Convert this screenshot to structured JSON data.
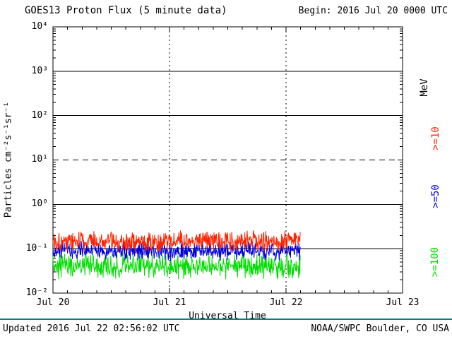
{
  "chart_data": {
    "type": "line",
    "title": "GOES13 Proton Flux (5 minute data)",
    "begin_label": "Begin: 2016 Jul 20 0000 UTC",
    "xlabel": "Universal Time",
    "ylabel": "Particles cm⁻²s⁻¹sr⁻¹",
    "y_scale": "log",
    "ylim": [
      0.01,
      10000
    ],
    "xlim_days": [
      0,
      3
    ],
    "x_tick_labels": [
      "Jul 20",
      "Jul 21",
      "Jul 22",
      "Jul 23"
    ],
    "y_tick_labels": [
      "10⁴",
      "10³",
      "10²",
      "10¹",
      "10⁰",
      "10⁻¹",
      "10⁻²"
    ],
    "grid": {
      "solid_decades": [
        3,
        2,
        0,
        -1
      ],
      "dashed_decade": 1,
      "vertical_dashed_days": [
        1,
        2
      ]
    },
    "right_axis_unit": "MeV",
    "series": [
      {
        "name": "protons >=10 MeV",
        "label": ">=10",
        "color": "#ff2200",
        "approx_mean_flux": 0.15,
        "approx_flux_range": [
          0.09,
          0.3
        ],
        "log10_mean": -0.83,
        "log10_noise": 0.28,
        "seed": 101,
        "end_day": 2.12
      },
      {
        "name": "protons >=50 MeV",
        "label": ">=50",
        "color": "#0000dd",
        "approx_mean_flux": 0.09,
        "approx_flux_range": [
          0.05,
          0.14
        ],
        "log10_mean": -1.05,
        "log10_noise": 0.24,
        "seed": 202,
        "end_day": 2.12
      },
      {
        "name": "protons >=100 MeV",
        "label": ">=100",
        "color": "#00dd00",
        "approx_mean_flux": 0.04,
        "approx_flux_range": [
          0.018,
          0.08
        ],
        "log10_mean": -1.4,
        "log10_noise": 0.32,
        "seed": 303,
        "end_day": 2.12
      }
    ]
  },
  "footer": {
    "updated": "Updated 2016 Jul 22 02:56:02 UTC",
    "credit": "NOAA/SWPC Boulder, CO USA",
    "rule_color": "#008080"
  }
}
